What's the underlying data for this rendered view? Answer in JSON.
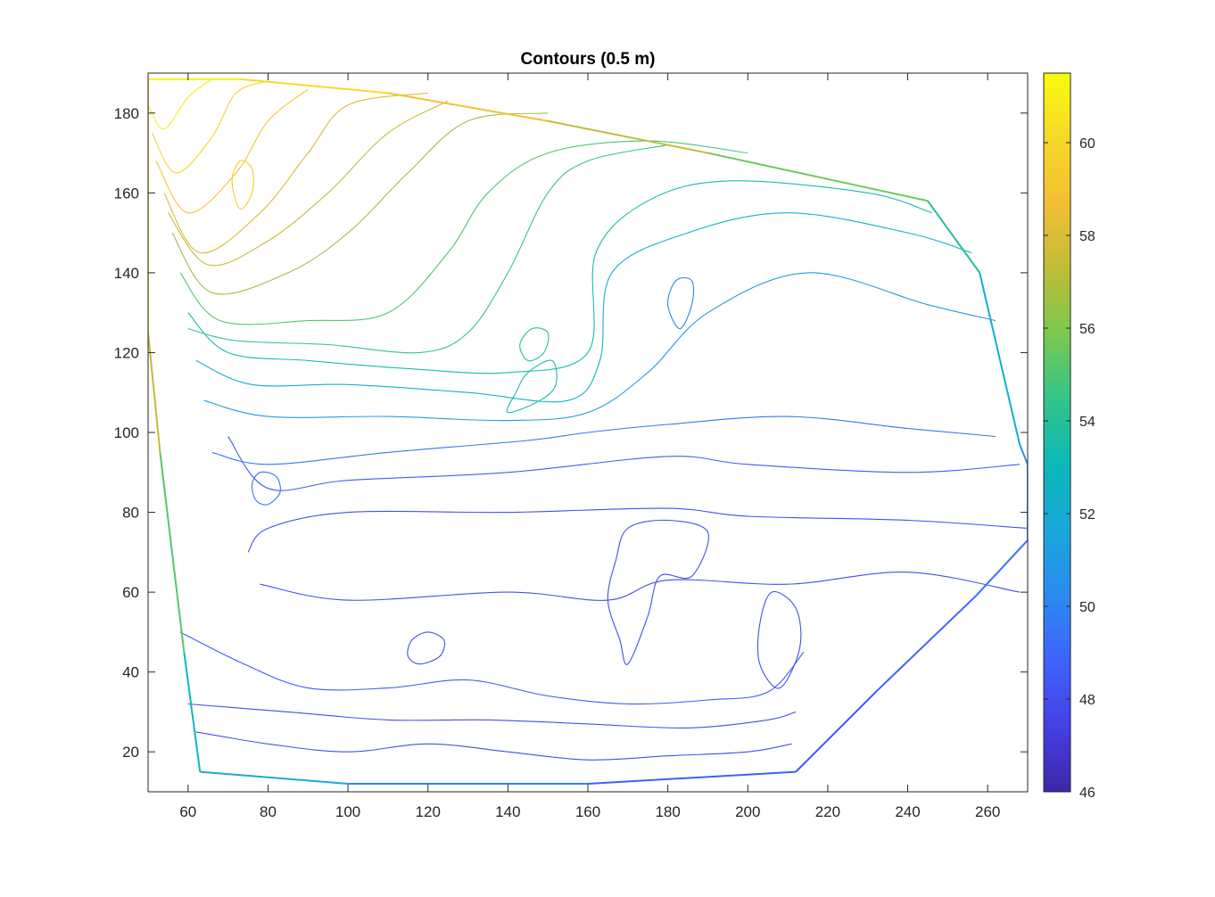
{
  "chart_data": {
    "type": "contour",
    "title": "Contours (0.5 m)",
    "xlabel": "",
    "ylabel": "",
    "xlim": [
      50,
      270
    ],
    "ylim": [
      10,
      190
    ],
    "x_ticks": [
      60,
      80,
      100,
      120,
      140,
      160,
      180,
      200,
      220,
      240,
      260
    ],
    "y_ticks": [
      20,
      40,
      60,
      80,
      100,
      120,
      140,
      160,
      180
    ],
    "contour_interval": 0.5,
    "colorbar": {
      "colormap": "parula",
      "range": [
        46,
        61.5
      ],
      "ticks": [
        46,
        48,
        50,
        52,
        54,
        56,
        58,
        60
      ],
      "colors": [
        "#3E26A8",
        "#4440E3",
        "#3F63FC",
        "#2B8AF0",
        "#1AA7DB",
        "#0CB8B8",
        "#31C48A",
        "#7BC950",
        "#BFBC38",
        "#F3BE34",
        "#F6D827",
        "#F9FB0E"
      ]
    },
    "boundary": [
      [
        50,
        188.5
      ],
      [
        73,
        188.5
      ],
      [
        110,
        185
      ],
      [
        150,
        178
      ],
      [
        190,
        170
      ],
      [
        245,
        158
      ],
      [
        258,
        140
      ],
      [
        268,
        97
      ],
      [
        270,
        92
      ],
      [
        270,
        73
      ],
      [
        257,
        59
      ],
      [
        232,
        35
      ],
      [
        212,
        15
      ],
      [
        160,
        12
      ],
      [
        100,
        12
      ],
      [
        63,
        15
      ],
      [
        59,
        45
      ],
      [
        53,
        95
      ],
      [
        50,
        125
      ]
    ],
    "contours": [
      {
        "level": 48.5,
        "points": [
          [
            58,
            50
          ],
          [
            74,
            42
          ],
          [
            90,
            36
          ],
          [
            110,
            36
          ],
          [
            130,
            38
          ],
          [
            150,
            34
          ],
          [
            170,
            32
          ],
          [
            190,
            33
          ],
          [
            205,
            35
          ],
          [
            214,
            45
          ]
        ]
      },
      {
        "level": 48.0,
        "points": [
          [
            62,
            25
          ],
          [
            80,
            22
          ],
          [
            100,
            20
          ],
          [
            120,
            22
          ],
          [
            140,
            20
          ],
          [
            160,
            18
          ],
          [
            180,
            19
          ],
          [
            200,
            20
          ],
          [
            211,
            22
          ]
        ]
      },
      {
        "level": 48.0,
        "points": [
          [
            75,
            70
          ],
          [
            80,
            76
          ],
          [
            100,
            80
          ],
          [
            140,
            80
          ],
          [
            180,
            81
          ],
          [
            200,
            79
          ],
          [
            240,
            78
          ],
          [
            270,
            76
          ]
        ]
      },
      {
        "level": 48.0,
        "points": [
          [
            78,
            62
          ],
          [
            100,
            58
          ],
          [
            140,
            60
          ],
          [
            165,
            58
          ],
          [
            180,
            63
          ],
          [
            210,
            62
          ],
          [
            240,
            65
          ],
          [
            268,
            60
          ]
        ]
      },
      {
        "level": 48.5,
        "points": [
          [
            70,
            99
          ],
          [
            80,
            86
          ],
          [
            100,
            88
          ],
          [
            140,
            90
          ],
          [
            180,
            94
          ],
          [
            200,
            92
          ],
          [
            240,
            90
          ],
          [
            268,
            92
          ]
        ]
      },
      {
        "level": 49.5,
        "points": [
          [
            66,
            95
          ],
          [
            80,
            92
          ],
          [
            110,
            95
          ],
          [
            145,
            98
          ],
          [
            160,
            100
          ],
          [
            180,
            102
          ],
          [
            210,
            104
          ],
          [
            240,
            101
          ],
          [
            262,
            99
          ]
        ]
      },
      {
        "level": 51.0,
        "points": [
          [
            64,
            108
          ],
          [
            80,
            104
          ],
          [
            110,
            104
          ],
          [
            140,
            103
          ],
          [
            160,
            105
          ],
          [
            175,
            115
          ],
          [
            190,
            130
          ],
          [
            215,
            140
          ],
          [
            245,
            132
          ],
          [
            262,
            128
          ]
        ]
      },
      {
        "level": 52.5,
        "points": [
          [
            62,
            118
          ],
          [
            76,
            112
          ],
          [
            100,
            112
          ],
          [
            130,
            110
          ],
          [
            155,
            108
          ],
          [
            163,
            118
          ],
          [
            166,
            140
          ],
          [
            185,
            150
          ],
          [
            210,
            155
          ],
          [
            240,
            150
          ],
          [
            256,
            145
          ]
        ]
      },
      {
        "level": 53.5,
        "points": [
          [
            60,
            130
          ],
          [
            70,
            120
          ],
          [
            90,
            118
          ],
          [
            115,
            116
          ],
          [
            140,
            115
          ],
          [
            160,
            120
          ],
          [
            162,
            145
          ],
          [
            175,
            158
          ],
          [
            195,
            163
          ],
          [
            230,
            160
          ],
          [
            246,
            155
          ]
        ]
      },
      {
        "level": 55.0,
        "points": [
          [
            58,
            140
          ],
          [
            68,
            128
          ],
          [
            90,
            128
          ],
          [
            110,
            130
          ],
          [
            125,
            145
          ],
          [
            135,
            160
          ],
          [
            150,
            170
          ],
          [
            175,
            173
          ],
          [
            200,
            170
          ]
        ]
      },
      {
        "level": 56.5,
        "points": [
          [
            56,
            150
          ],
          [
            66,
            135
          ],
          [
            85,
            140
          ],
          [
            100,
            150
          ],
          [
            115,
            165
          ],
          [
            130,
            178
          ],
          [
            150,
            180
          ]
        ]
      },
      {
        "level": 58.0,
        "points": [
          [
            54,
            160
          ],
          [
            63,
            145
          ],
          [
            78,
            155
          ],
          [
            90,
            170
          ],
          [
            100,
            182
          ],
          [
            120,
            185
          ]
        ]
      },
      {
        "level": 59.0,
        "points": [
          [
            52,
            168
          ],
          [
            60,
            155
          ],
          [
            72,
            165
          ],
          [
            80,
            178
          ],
          [
            90,
            186
          ]
        ]
      },
      {
        "level": 60.0,
        "points": [
          [
            51,
            175
          ],
          [
            57,
            165
          ],
          [
            66,
            174
          ],
          [
            72,
            185
          ],
          [
            80,
            188
          ]
        ]
      },
      {
        "level": 61.0,
        "points": [
          [
            50,
            182
          ],
          [
            54,
            176
          ],
          [
            60,
            184
          ],
          [
            66,
            188.5
          ]
        ]
      },
      {
        "level": 54.5,
        "points": [
          [
            60,
            126
          ],
          [
            72,
            123
          ],
          [
            95,
            122
          ],
          [
            118,
            120
          ],
          [
            130,
            125
          ],
          [
            140,
            140
          ],
          [
            150,
            160
          ],
          [
            160,
            168
          ],
          [
            180,
            172
          ]
        ]
      },
      {
        "level": 57.5,
        "points": [
          [
            55,
            155
          ],
          [
            65,
            142
          ],
          [
            80,
            148
          ],
          [
            95,
            160
          ],
          [
            110,
            175
          ],
          [
            125,
            183
          ]
        ]
      },
      {
        "level": 48.0,
        "points": [
          [
            60,
            32
          ],
          [
            85,
            30
          ],
          [
            110,
            28
          ],
          [
            135,
            28
          ],
          [
            160,
            27
          ],
          [
            185,
            26
          ],
          [
            205,
            28
          ],
          [
            212,
            30
          ]
        ]
      }
    ],
    "closed_contours": [
      {
        "level": 48.0,
        "points": [
          [
            170,
            42
          ],
          [
            175,
            54
          ],
          [
            178,
            64
          ],
          [
            186,
            64
          ],
          [
            190,
            75
          ],
          [
            180,
            78
          ],
          [
            170,
            76
          ],
          [
            167,
            68
          ],
          [
            165,
            58
          ],
          [
            168,
            48
          ]
        ]
      },
      {
        "level": 48.0,
        "points": [
          [
            208,
            36
          ],
          [
            213,
            46
          ],
          [
            212,
            56
          ],
          [
            206,
            60
          ],
          [
            203,
            52
          ],
          [
            203,
            42
          ]
        ]
      },
      {
        "level": 48.0,
        "points": [
          [
            118,
            42
          ],
          [
            123,
            44
          ],
          [
            124,
            48
          ],
          [
            120,
            50
          ],
          [
            116,
            48
          ],
          [
            115,
            44
          ]
        ]
      },
      {
        "level": 49.5,
        "points": [
          [
            77,
            83
          ],
          [
            80,
            82
          ],
          [
            83,
            85
          ],
          [
            82,
            89
          ],
          [
            78,
            90
          ],
          [
            76,
            87
          ]
        ]
      },
      {
        "level": 54.0,
        "points": [
          [
            145,
            118
          ],
          [
            149,
            120
          ],
          [
            150,
            125
          ],
          [
            146,
            126
          ],
          [
            143,
            122
          ]
        ]
      },
      {
        "level": 53.5,
        "points": [
          [
            140,
            105
          ],
          [
            148,
            108
          ],
          [
            152,
            112
          ],
          [
            151,
            118
          ],
          [
            145,
            115
          ],
          [
            142,
            110
          ]
        ]
      },
      {
        "level": 59.5,
        "points": [
          [
            73,
            156
          ],
          [
            76,
            160
          ],
          [
            76,
            166
          ],
          [
            73,
            168
          ],
          [
            71,
            163
          ]
        ]
      },
      {
        "level": 50.0,
        "points": [
          [
            183,
            126
          ],
          [
            186,
            132
          ],
          [
            186,
            138
          ],
          [
            182,
            138
          ],
          [
            180,
            132
          ]
        ]
      }
    ]
  }
}
